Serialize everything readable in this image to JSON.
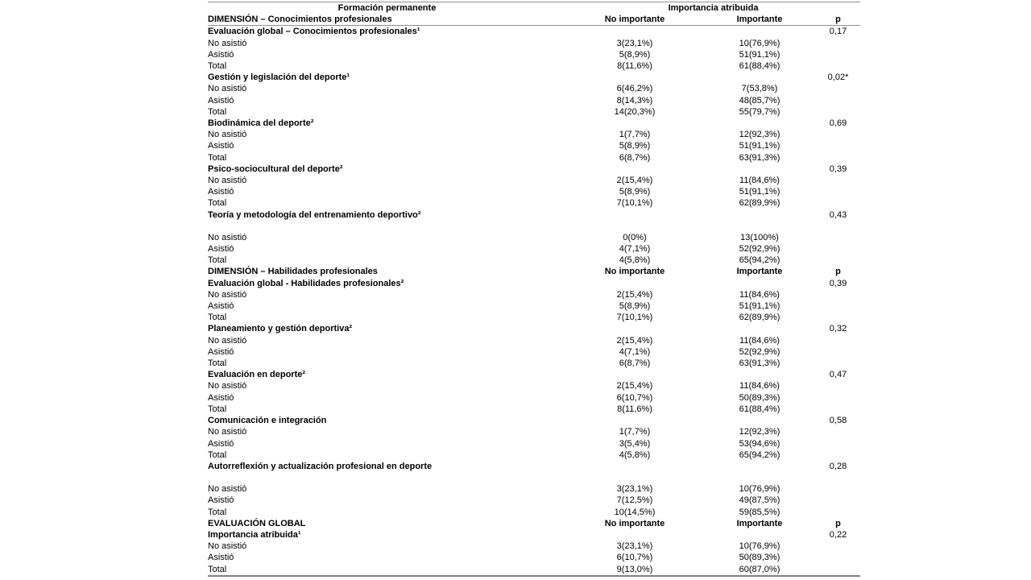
{
  "colors": {
    "background": "#ffffff",
    "text": "#000000",
    "rule": "#909090"
  },
  "table": {
    "header": {
      "group1": "Formación permanente",
      "group2": "Importancia atribuida"
    },
    "rows": [
      {
        "type": "colheader",
        "label": "DIMENSIÓN – Conocimientos profesionales",
        "c1": "No importante",
        "c2": "Importante",
        "p": "p"
      },
      {
        "type": "section",
        "label": "Evaluación global – Conocimientos profesionales¹",
        "p": "0,17"
      },
      {
        "type": "data",
        "label": "No asistió",
        "c1": "3(23,1%)",
        "c2": "10(76,9%)"
      },
      {
        "type": "data",
        "label": "Asistió",
        "c1": "5(8,9%)",
        "c2": "51(91,1%)"
      },
      {
        "type": "data",
        "label": "Total",
        "c1": "8(11,6%)",
        "c2": "61(88,4%)"
      },
      {
        "type": "section",
        "label": "Gestión y legislación del deporte¹",
        "p": "0,02*"
      },
      {
        "type": "data",
        "label": "No asistió",
        "c1": "6(46,2%)",
        "c2": "7(53,8%)"
      },
      {
        "type": "data",
        "label": "Asistió",
        "c1": "8(14,3%)",
        "c2": "48(85,7%)"
      },
      {
        "type": "data",
        "label": "Total",
        "c1": "14(20,3%)",
        "c2": "55(79,7%)"
      },
      {
        "type": "section",
        "label": "Biodinámica del deporte²",
        "p": "0,69"
      },
      {
        "type": "data",
        "label": "No asistió",
        "c1": "1(7,7%)",
        "c2": "12(92,3%)"
      },
      {
        "type": "data",
        "label": "Asistió",
        "c1": "5(8,9%)",
        "c2": "51(91,1%)"
      },
      {
        "type": "data",
        "label": "Total",
        "c1": "6(8,7%)",
        "c2": "63(91,3%)"
      },
      {
        "type": "section",
        "label": "Psico-sociocultural del deporte²",
        "p": "0,39"
      },
      {
        "type": "data",
        "label": "No asistió",
        "c1": "2(15,4%)",
        "c2": "11(84,6%)"
      },
      {
        "type": "data",
        "label": "Asistió",
        "c1": "5(8,9%)",
        "c2": "51(91,1%)"
      },
      {
        "type": "data",
        "label": "Total",
        "c1": "7(10,1%)",
        "c2": "62(89,9%)"
      },
      {
        "type": "section",
        "label": "Teoría y metodología del entrenamiento deportivo²",
        "p": "0,43"
      },
      {
        "type": "data",
        "gap": true,
        "label": "No asistió",
        "c1": "0(0%)",
        "c2": "13(100%)"
      },
      {
        "type": "data",
        "label": "Asistió",
        "c1": "4(7,1%)",
        "c2": "52(92,9%)"
      },
      {
        "type": "data",
        "label": "Total",
        "c1": "4(5,8%)",
        "c2": "65(94,2%)"
      },
      {
        "type": "colheader",
        "label": "DIMENSIÓN – Habilidades profesionales",
        "c1": "No importante",
        "c2": "Importante",
        "p": "p"
      },
      {
        "type": "section",
        "label": "Evaluación global - Habilidades profesionales²",
        "p": "0,39"
      },
      {
        "type": "data",
        "label": "No asistió",
        "c1": "2(15,4%)",
        "c2": "11(84,6%)"
      },
      {
        "type": "data",
        "label": "Asistió",
        "c1": "5(8,9%)",
        "c2": "51(91,1%)"
      },
      {
        "type": "data",
        "label": "Total",
        "c1": "7(10,1%)",
        "c2": "62(89,9%)"
      },
      {
        "type": "section",
        "label": "Planeamiento y gestión deportiva²",
        "p": "0,32"
      },
      {
        "type": "data",
        "label": "No asistió",
        "c1": "2(15,4%)",
        "c2": "11(84,6%)"
      },
      {
        "type": "data",
        "label": "Asistió",
        "c1": "4(7,1%)",
        "c2": "52(92,9%)"
      },
      {
        "type": "data",
        "label": "Total",
        "c1": "6(8,7%)",
        "c2": "63(91,3%)"
      },
      {
        "type": "section",
        "label": "Evaluación en deporte²",
        "p": "0,47"
      },
      {
        "type": "data",
        "label": "No asistió",
        "c1": "2(15,4%)",
        "c2": "11(84,6%)"
      },
      {
        "type": "data",
        "label": "Asistió",
        "c1": "6(10,7%)",
        "c2": "50(89,3%)"
      },
      {
        "type": "data",
        "label": "Total",
        "c1": "8(11,6%)",
        "c2": "61(88,4%)"
      },
      {
        "type": "section",
        "label": "Comunicación e integración",
        "p": "0,58"
      },
      {
        "type": "data",
        "label": "No asistió",
        "c1": "1(7,7%)",
        "c2": "12(92,3%)"
      },
      {
        "type": "data",
        "label": "Asistió",
        "c1": "3(5,4%)",
        "c2": "53(94,6%)"
      },
      {
        "type": "data",
        "label": "Total",
        "c1": "4(5,8%)",
        "c2": "65(94,2%)"
      },
      {
        "type": "section",
        "label": "Autorreflexión y actualización profesional en deporte",
        "p": "0,28"
      },
      {
        "type": "data",
        "gap": true,
        "label": "No asistió",
        "c1": "3(23,1%)",
        "c2": "10(76,9%)"
      },
      {
        "type": "data",
        "label": "Asistió",
        "c1": "7(12,5%)",
        "c2": "49(87,5%)"
      },
      {
        "type": "data",
        "label": "Total",
        "c1": "10(14,5%)",
        "c2": "59(85,5%)"
      },
      {
        "type": "colheader",
        "label": "EVALUACIÓN GLOBAL",
        "c1": "No importante",
        "c2": "Importante",
        "p": "p"
      },
      {
        "type": "section",
        "label": "Importancia atribuida¹",
        "p": "0,22"
      },
      {
        "type": "data",
        "label": "No asistió",
        "c1": "3(23,1%)",
        "c2": "10(76,9%)"
      },
      {
        "type": "data",
        "label": "Asistió",
        "c1": "6(10,7%)",
        "c2": "50(89,3%)"
      },
      {
        "type": "data",
        "label": "Total",
        "c1": "9(13,0%)",
        "c2": "60(87,0%)"
      }
    ]
  }
}
